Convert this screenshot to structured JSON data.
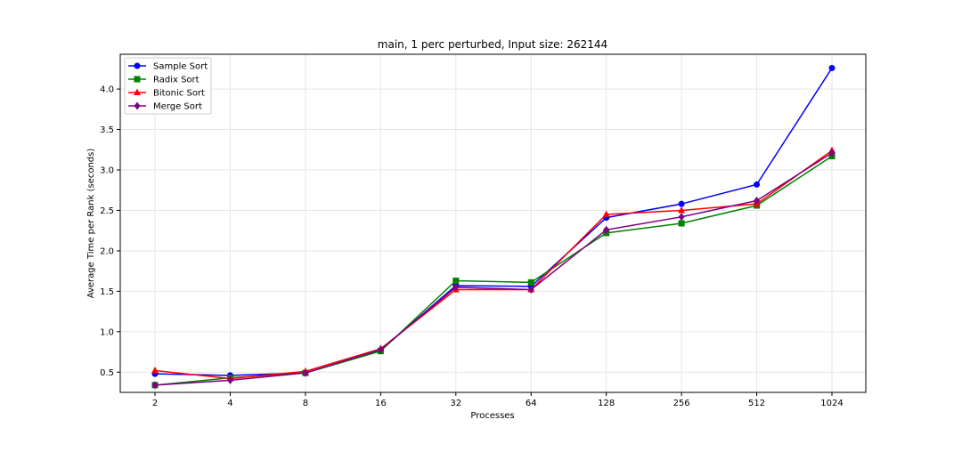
{
  "chart_data": {
    "type": "line",
    "title": "main, 1 perc perturbed, Input size: 262144",
    "xlabel": "Processes",
    "ylabel": "Average Time per Rank (seconds)",
    "categories": [
      "2",
      "4",
      "8",
      "16",
      "32",
      "64",
      "128",
      "256",
      "512",
      "1024"
    ],
    "ylim": [
      0.25,
      4.43
    ],
    "yticks": [
      "0.5",
      "1.0",
      "1.5",
      "2.0",
      "2.5",
      "3.0",
      "3.5",
      "4.0"
    ],
    "grid": true,
    "legend_position": "top-left",
    "series": [
      {
        "name": "Sample Sort",
        "color": "#0000ff",
        "marker": "circle",
        "values": [
          0.48,
          0.46,
          0.49,
          0.77,
          1.57,
          1.56,
          2.41,
          2.58,
          2.82,
          4.26
        ]
      },
      {
        "name": "Radix Sort",
        "color": "#008000",
        "marker": "square",
        "values": [
          0.34,
          0.43,
          0.49,
          0.76,
          1.63,
          1.61,
          2.22,
          2.34,
          2.56,
          3.17
        ]
      },
      {
        "name": "Bitonic Sort",
        "color": "#ff0000",
        "marker": "triangle",
        "values": [
          0.52,
          0.42,
          0.51,
          0.79,
          1.52,
          1.52,
          2.45,
          2.5,
          2.58,
          3.24
        ]
      },
      {
        "name": "Merge Sort",
        "color": "#800080",
        "marker": "diamond",
        "values": [
          0.34,
          0.4,
          0.49,
          0.78,
          1.55,
          1.52,
          2.26,
          2.42,
          2.62,
          3.21
        ]
      }
    ]
  }
}
